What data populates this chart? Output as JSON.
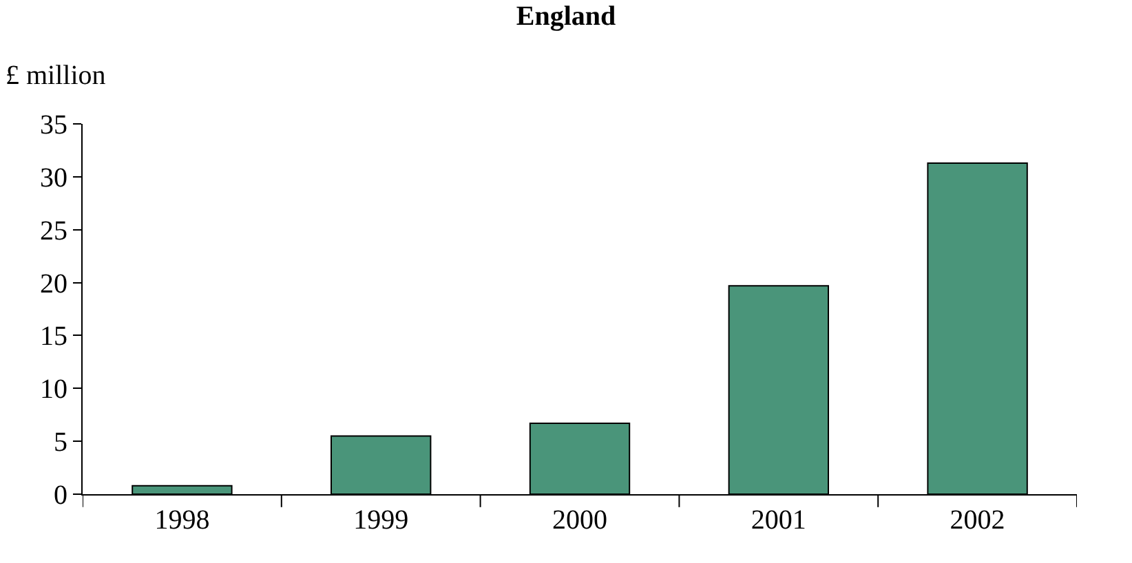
{
  "chart_data": {
    "type": "bar",
    "title": "England",
    "ylabel": "£ million",
    "categories": [
      "1998",
      "1999",
      "2000",
      "2001",
      "2002"
    ],
    "values": [
      0.8,
      5.5,
      6.7,
      19.7,
      31.3
    ],
    "color": "#4a957a",
    "ylim": [
      0,
      35
    ],
    "yticks": [
      0,
      5,
      10,
      15,
      20,
      25,
      30,
      35
    ],
    "grid": false
  }
}
